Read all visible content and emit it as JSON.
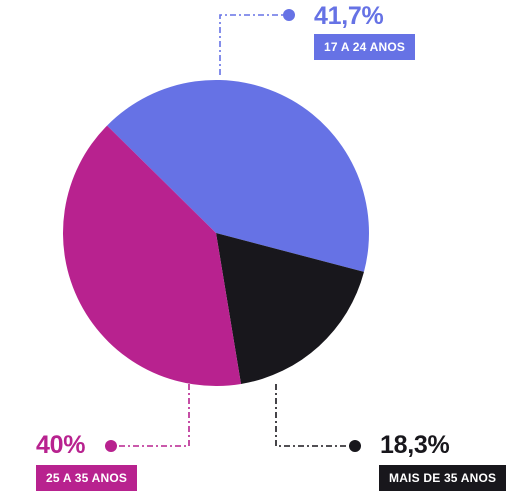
{
  "chart_data": {
    "type": "pie",
    "slices": [
      {
        "label": "17 A 24 ANOS",
        "value": 41.7,
        "value_label": "41,7%",
        "color": "#6672e5"
      },
      {
        "label": "MAIS DE 35 ANOS",
        "value": 18.3,
        "value_label": "18,3%",
        "color": "#18171c"
      },
      {
        "label": "25 A 35 ANOS",
        "value": 40,
        "value_label": "40%",
        "color": "#b8228f"
      }
    ]
  }
}
